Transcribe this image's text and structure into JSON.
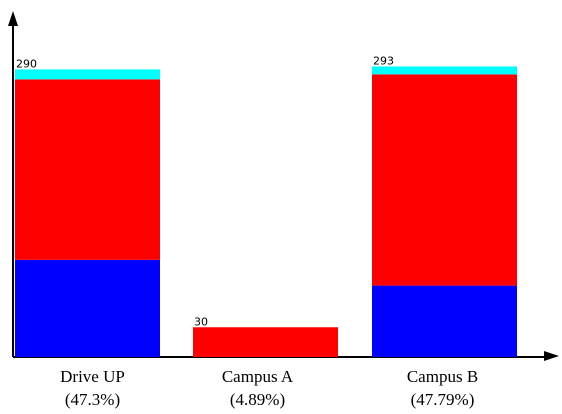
{
  "chart_data": {
    "type": "bar",
    "stacked": true,
    "categories": [
      "Drive UP",
      "Campus A",
      "Campus B"
    ],
    "category_percentages": [
      "(47.3%)",
      "(4.89%)",
      "(47.79%)"
    ],
    "totals": [
      "290",
      "30",
      "293"
    ],
    "series": [
      {
        "values": [
          98,
          0,
          72
        ],
        "color": "#0000ff"
      },
      {
        "values": [
          182,
          30,
          213
        ],
        "color": "#ff0000"
      },
      {
        "values": [
          10,
          0,
          8
        ],
        "color": "#00ffff"
      }
    ],
    "ylim": [
      0,
      360
    ],
    "grid": false,
    "legend": "none"
  }
}
